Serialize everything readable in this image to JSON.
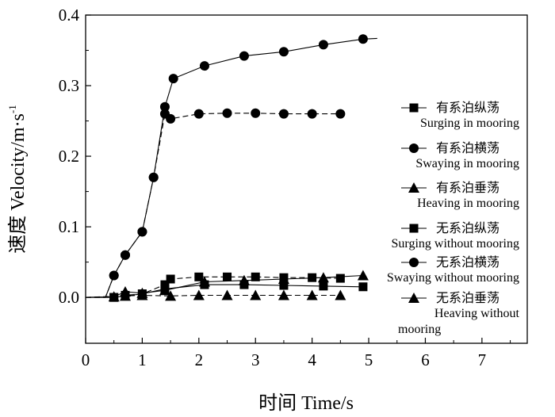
{
  "chart_data": {
    "type": "line",
    "xlabel": "时间 Time/s",
    "ylabel": "速度 Velocity/m·s",
    "ylabel_superscript": "-1",
    "xlim": [
      0,
      7.8
    ],
    "ylim": [
      -0.065,
      0.4
    ],
    "x_ticks": [
      0,
      1,
      2,
      3,
      4,
      5,
      6,
      7
    ],
    "x_tick_labels": [
      "0",
      "1",
      "2",
      "3",
      "4",
      "5",
      "6",
      "7"
    ],
    "y_ticks": [
      0.0,
      0.1,
      0.2,
      0.3,
      0.4
    ],
    "y_tick_labels": [
      "0.0",
      "0.1",
      "0.2",
      "0.3",
      "0.4"
    ],
    "grid": false,
    "legend_placement": "right",
    "series": [
      {
        "name": "有系泊纵荡",
        "name_en": "Surging in mooring",
        "marker": "square",
        "line": "dashed",
        "x": [
          0,
          0.5,
          0.7,
          1.0,
          1.4,
          1.5,
          2.0,
          2.5,
          3.0,
          3.5,
          4.0,
          4.5
        ],
        "y": [
          0.0,
          0.0,
          0.003,
          0.005,
          0.018,
          0.026,
          0.029,
          0.029,
          0.029,
          0.028,
          0.028,
          0.027
        ]
      },
      {
        "name": "有系泊横荡",
        "name_en": "Swaying in mooring",
        "marker": "circle",
        "line": "dashed",
        "x": [
          0,
          0.35,
          0.5,
          0.7,
          1.0,
          1.2,
          1.4,
          1.5,
          2.0,
          2.5,
          3.0,
          3.5,
          4.0,
          4.5
        ],
        "y": [
          0.0,
          0.0,
          0.031,
          0.06,
          0.093,
          0.17,
          0.26,
          0.253,
          0.26,
          0.261,
          0.261,
          0.26,
          0.26,
          0.26
        ]
      },
      {
        "name": "有系泊垂荡",
        "name_en": "Heaving in mooring",
        "marker": "triangle",
        "line": "dashed",
        "x": [
          0,
          0.7,
          1.0,
          1.5,
          2.0,
          2.5,
          3.0,
          3.5,
          4.0,
          4.5
        ],
        "y": [
          0.0,
          0.002,
          0.003,
          0.002,
          0.003,
          0.003,
          0.003,
          0.003,
          0.003,
          0.003
        ]
      },
      {
        "name": "无系泊纵荡",
        "name_en": "Surging without mooring",
        "marker": "square",
        "line": "solid",
        "x": [
          0,
          0.5,
          0.7,
          1.0,
          1.4,
          2.1,
          2.8,
          3.5,
          4.2,
          4.9
        ],
        "y": [
          0.0,
          0.0,
          0.002,
          0.005,
          0.012,
          0.018,
          0.018,
          0.017,
          0.016,
          0.015
        ]
      },
      {
        "name": "无系泊横荡",
        "name_en": "Swaying without mooring",
        "marker": "circle",
        "line": "solid",
        "x": [
          0,
          0.35,
          0.5,
          0.7,
          1.0,
          1.2,
          1.4,
          1.55,
          2.1,
          2.8,
          3.5,
          4.2,
          4.9,
          5.15
        ],
        "y": [
          0.0,
          0.0,
          0.031,
          0.06,
          0.093,
          0.17,
          0.27,
          0.31,
          0.328,
          0.342,
          0.348,
          0.358,
          0.366,
          0.367
        ]
      },
      {
        "name": "无系泊垂荡",
        "name_en": "Heaving without mooring",
        "marker": "triangle",
        "line": "solid",
        "x": [
          0,
          0.5,
          0.7,
          1.0,
          1.4,
          2.1,
          2.8,
          3.5,
          4.2,
          4.9
        ],
        "y": [
          0.0,
          0.001,
          0.008,
          0.006,
          0.01,
          0.022,
          0.024,
          0.026,
          0.028,
          0.031
        ]
      }
    ],
    "legend_items": [
      {
        "label": "有系泊纵荡",
        "label_en": "Surging in mooring",
        "marker": "square"
      },
      {
        "label": "有系泊横荡",
        "label_en": "Swaying in mooring",
        "marker": "circle"
      },
      {
        "label": "有系泊垂荡",
        "label_en": "Heaving in mooring",
        "marker": "triangle"
      },
      {
        "label": "无系泊纵荡",
        "label_en": "Surging without mooring",
        "marker": "square"
      },
      {
        "label": "无系泊横荡",
        "label_en": "Swaying without mooring",
        "marker": "circle"
      },
      {
        "label": "无系泊垂荡",
        "label_en": "Heaving without",
        "label_en_2": "mooring",
        "marker": "triangle"
      }
    ]
  }
}
